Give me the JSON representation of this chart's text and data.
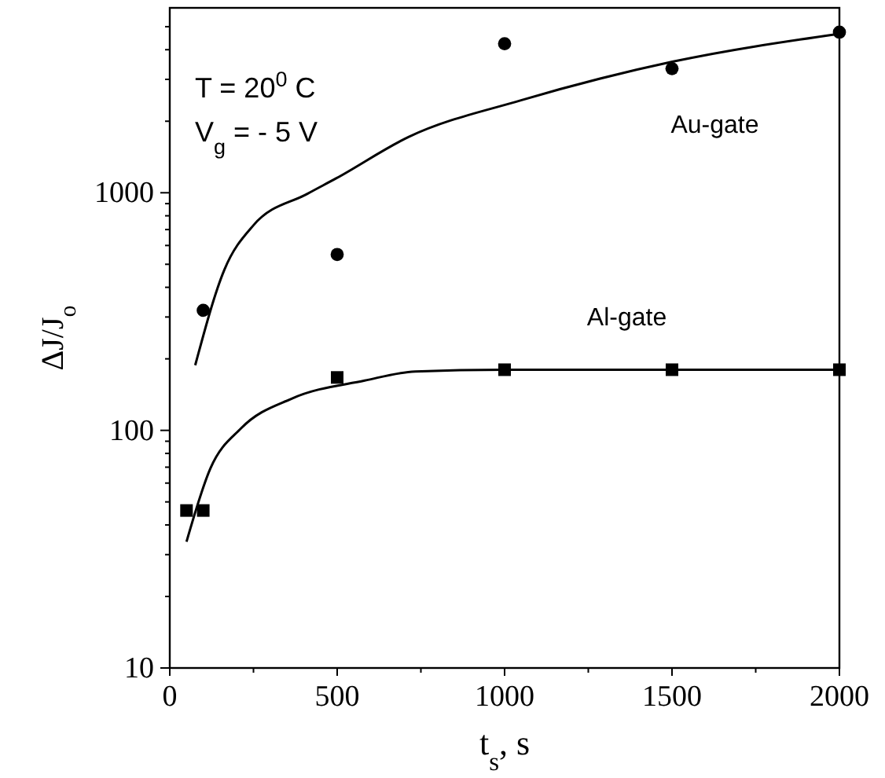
{
  "chart_data": {
    "type": "scatter",
    "xlabel": "t$_{s}$, s",
    "ylabel": "ΔJ/J$_{o}$",
    "log": "y",
    "grid": false,
    "xlim": [
      0,
      2000
    ],
    "xticks": [
      0,
      {
        "value": 250,
        "label": null
      },
      500,
      {
        "value": 750,
        "label": null
      },
      1000,
      {
        "value": 1250,
        "label": null
      },
      1500,
      {
        "value": 1750,
        "label": null
      },
      2000
    ],
    "ylim": [
      10,
      6000
    ],
    "yticks": [
      10,
      {
        "value": 20,
        "label": null
      },
      {
        "value": 30,
        "label": null
      },
      {
        "value": 40,
        "label": null
      },
      {
        "value": 50,
        "label": null
      },
      {
        "value": 60,
        "label": null
      },
      {
        "value": 70,
        "label": null
      },
      {
        "value": 80,
        "label": null
      },
      {
        "value": 90,
        "label": null
      },
      100,
      {
        "value": 200,
        "label": null
      },
      {
        "value": 300,
        "label": null
      },
      {
        "value": 400,
        "label": null
      },
      {
        "value": 500,
        "label": null
      },
      {
        "value": 600,
        "label": null
      },
      {
        "value": 700,
        "label": null
      },
      {
        "value": 800,
        "label": null
      },
      {
        "value": 900,
        "label": null
      },
      1000,
      {
        "value": 2000,
        "label": null
      },
      {
        "value": 3000,
        "label": null
      },
      {
        "value": 4000,
        "label": null
      },
      {
        "value": 5000,
        "label": null
      }
    ],
    "annotations": [
      "T = 20$^{0}$ C",
      "V$_{g}$ = - 5 V"
    ],
    "series": [
      {
        "name": "Au-gate",
        "marker": "circle",
        "color": "#000000",
        "x": [
          100,
          500,
          1000,
          1500,
          2000
        ],
        "values": [
          320,
          550,
          4240,
          3330,
          4740
        ]
      },
      {
        "type": "line",
        "marker": "none",
        "line_style": "solid",
        "color": "#000000",
        "x": [
          76,
          163,
          250,
          411,
          497,
          714,
          1049,
          1501,
          2000
        ],
        "values": [
          188,
          474,
          730,
          990,
          1150,
          1720,
          2450,
          3560,
          4670
        ]
      },
      {
        "name": "Al-gate",
        "marker": "square",
        "color": "#000000",
        "x": [
          50,
          100,
          500,
          1000,
          1500,
          2000
        ],
        "values": [
          46,
          46,
          167,
          180,
          180,
          180
        ]
      },
      {
        "type": "line",
        "marker": "none",
        "line_style": "solid",
        "color": "#000000",
        "x": [
          50,
          121,
          213,
          364,
          582,
          733,
          1000,
          1500,
          2000
        ],
        "values": [
          34,
          69,
          102,
          136,
          162,
          177,
          180,
          180,
          180
        ]
      }
    ]
  }
}
